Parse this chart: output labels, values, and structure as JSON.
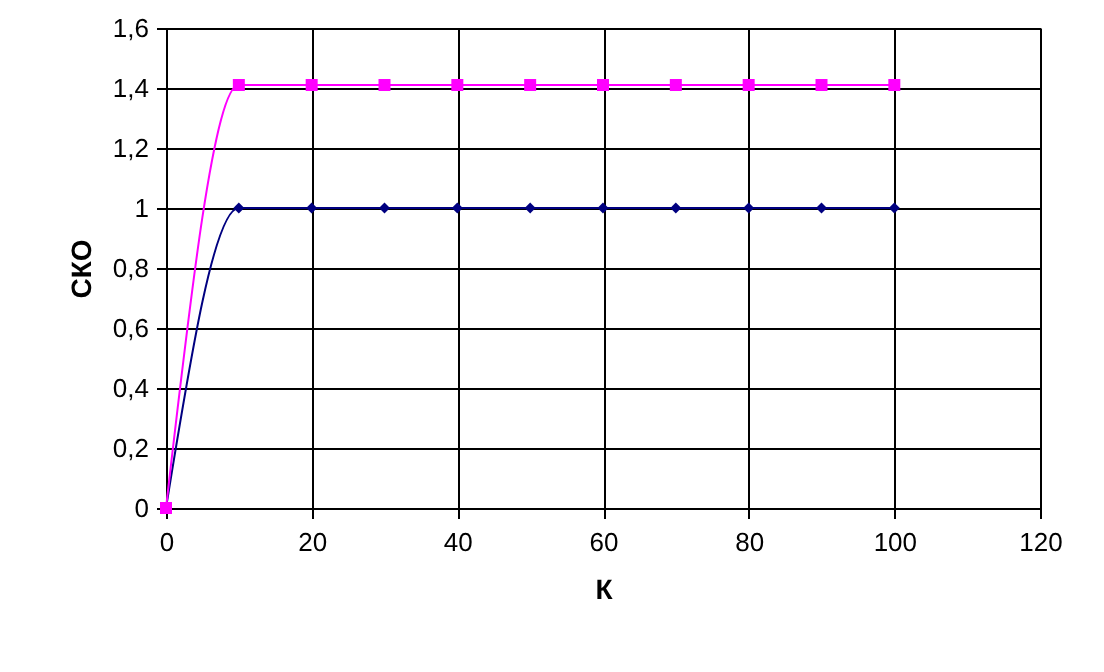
{
  "chart_data": {
    "type": "line",
    "xlabel": "К",
    "ylabel": "СКО",
    "x": [
      0,
      10,
      20,
      30,
      40,
      50,
      60,
      70,
      80,
      90,
      100
    ],
    "series": [
      {
        "color": "#000080",
        "marker": "diamond",
        "values": [
          0,
          1,
          1,
          1,
          1,
          1,
          1,
          1,
          1,
          1,
          1
        ]
      },
      {
        "color": "#ff00ff",
        "marker": "square",
        "values": [
          0,
          1.41,
          1.41,
          1.41,
          1.41,
          1.41,
          1.41,
          1.41,
          1.41,
          1.41,
          1.41
        ]
      }
    ],
    "xlim": [
      0,
      120
    ],
    "xticks": [
      0,
      20,
      40,
      60,
      80,
      100,
      120
    ],
    "ylim": [
      0,
      1.6
    ],
    "yticks": [
      0,
      {
        "value": 0.2,
        "label": "0,2"
      },
      {
        "value": 0.4,
        "label": "0,4"
      },
      {
        "value": 0.6,
        "label": "0,6"
      },
      {
        "value": 0.8,
        "label": "0,8"
      },
      1,
      {
        "value": 1.2,
        "label": "1,2"
      },
      {
        "value": 1.4,
        "label": "1,4"
      },
      {
        "value": 1.6,
        "label": "1,6"
      }
    ],
    "grid": true,
    "line_style": "solid"
  }
}
